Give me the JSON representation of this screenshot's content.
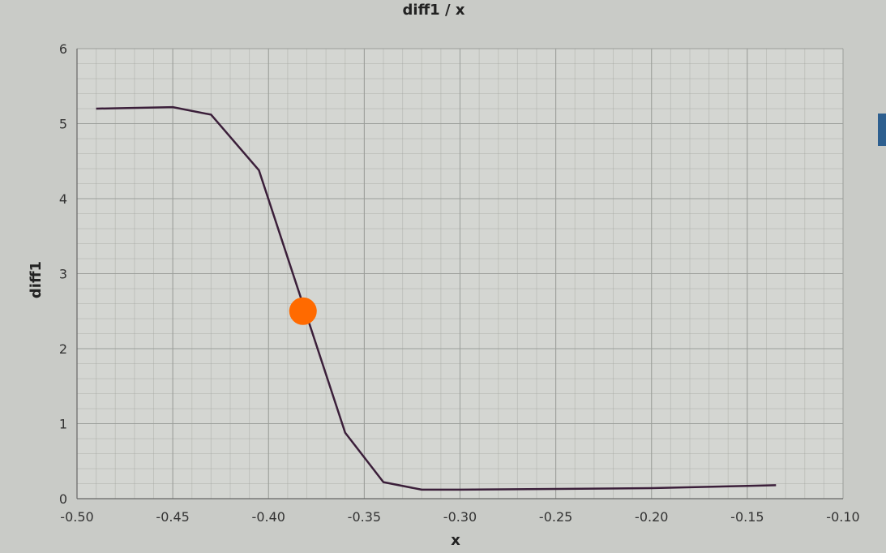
{
  "chart_data": {
    "type": "line",
    "title": "diff1 / x",
    "xlabel": "x",
    "ylabel": "diff1",
    "xlim": [
      -0.5,
      -0.1
    ],
    "ylim": [
      0,
      6
    ],
    "grid": true,
    "xticks": [
      "-0.50",
      "-0.45",
      "-0.40",
      "-0.35",
      "-0.30",
      "-0.25",
      "-0.20",
      "-0.15",
      "-0.10"
    ],
    "yticks": [
      "0",
      "1",
      "2",
      "3",
      "4",
      "5",
      "6"
    ],
    "series": [
      {
        "color": "#3b1f3a",
        "x": [
          -0.49,
          -0.45,
          -0.43,
          -0.405,
          -0.36,
          -0.34,
          -0.32,
          -0.3,
          -0.25,
          -0.2,
          -0.15,
          -0.135
        ],
        "y": [
          5.2,
          5.22,
          5.12,
          4.38,
          0.88,
          0.22,
          0.12,
          0.12,
          0.13,
          0.14,
          0.17,
          0.18
        ]
      }
    ],
    "marker": {
      "x": -0.382,
      "y": 2.5,
      "color": "#ff6a00"
    }
  }
}
